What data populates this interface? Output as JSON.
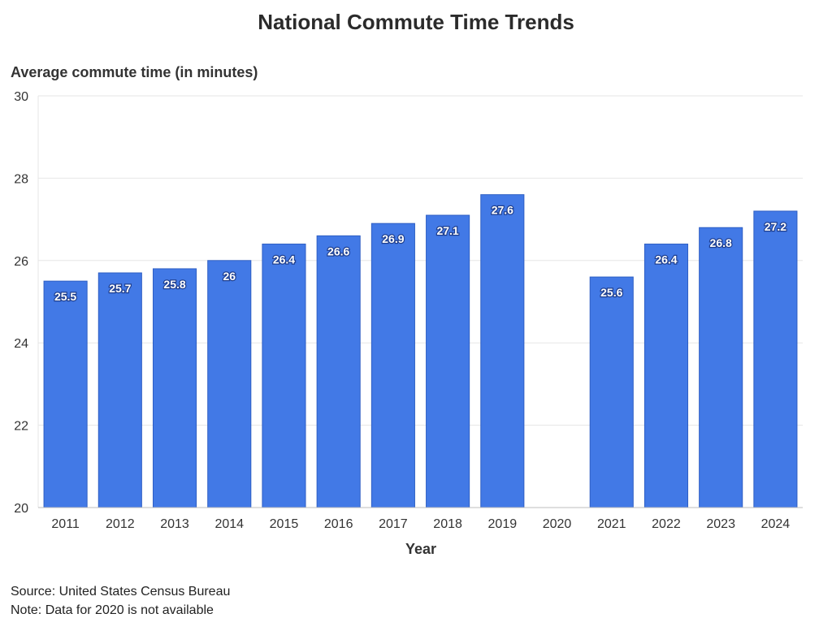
{
  "chart_data": {
    "type": "bar",
    "title": "National Commute Time Trends",
    "xlabel": "Year",
    "ylabel": "Average commute time (in minutes)",
    "categories": [
      "2011",
      "2012",
      "2013",
      "2014",
      "2015",
      "2016",
      "2017",
      "2018",
      "2019",
      "2020",
      "2021",
      "2022",
      "2023",
      "2024"
    ],
    "values": [
      25.5,
      25.7,
      25.8,
      26,
      26.4,
      26.6,
      26.9,
      27.1,
      27.6,
      null,
      25.6,
      26.4,
      26.8,
      27.2
    ],
    "data_labels": [
      "25.5",
      "25.7",
      "25.8",
      "26",
      "26.4",
      "26.6",
      "26.9",
      "27.1",
      "27.6",
      "",
      "25.6",
      "26.4",
      "26.8",
      "27.2"
    ],
    "ylim": [
      20,
      30
    ],
    "yticks": [
      20,
      22,
      24,
      26,
      28,
      30
    ],
    "grid": true,
    "legend": "none",
    "bar_color": "#4279e6",
    "bar_edge_color": "#2f5fc4"
  },
  "source": "Source: United States Census Bureau",
  "note": "Note: Data for 2020 is not available"
}
